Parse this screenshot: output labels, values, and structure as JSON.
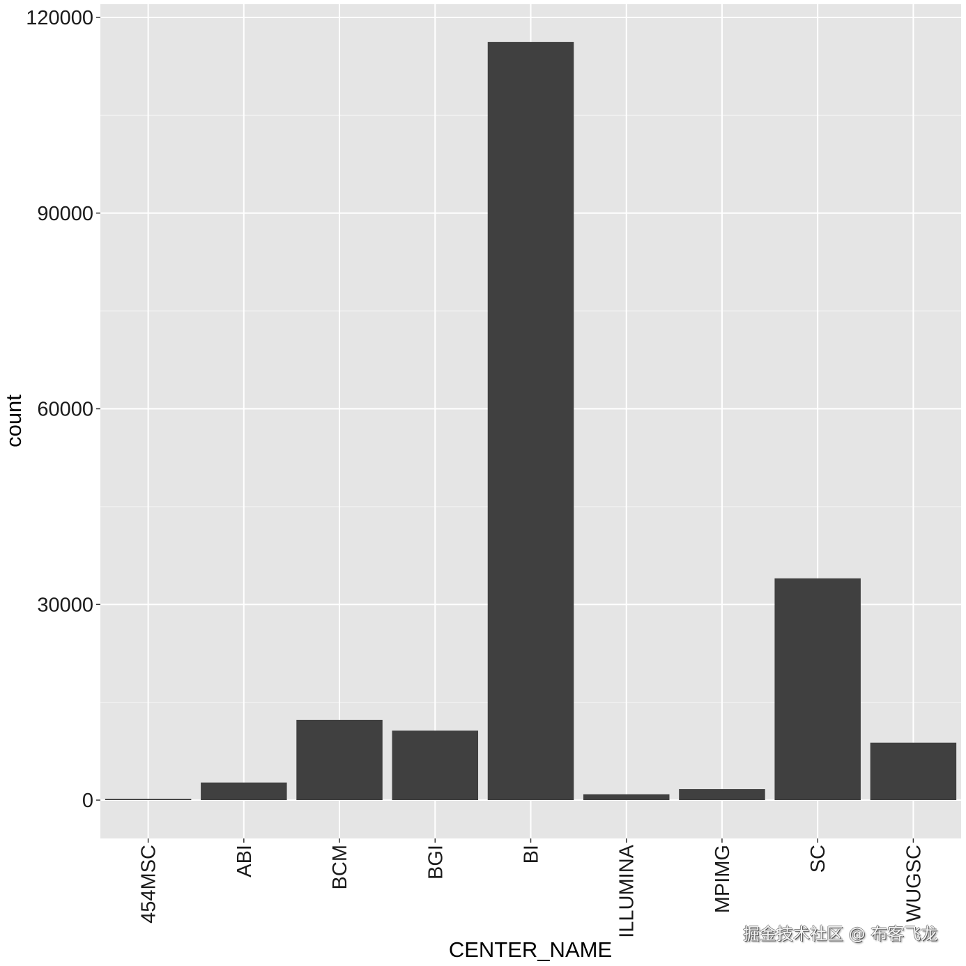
{
  "chart_data": {
    "type": "bar",
    "title": "",
    "xlabel": "CENTER_NAME",
    "ylabel": "count",
    "categories": [
      "454MSC",
      "ABI",
      "BCM",
      "BGI",
      "BI",
      "ILLUMINA",
      "MPIMG",
      "SC",
      "WUGSC"
    ],
    "values": [
      200,
      2700,
      12300,
      10650,
      116250,
      900,
      1700,
      34000,
      8800
    ],
    "ylim": [
      -5900,
      121900
    ],
    "yticks": [
      0,
      30000,
      60000,
      90000,
      120000
    ],
    "ytick_labels": [
      "0",
      "30000",
      "60000",
      "90000",
      "120000"
    ],
    "grid": true,
    "legend": null,
    "bar_color": "#404040",
    "panel_background": "#e5e5e5",
    "grid_color": "#ffffff"
  },
  "watermark": "掘金技术社区 @ 布客飞龙"
}
